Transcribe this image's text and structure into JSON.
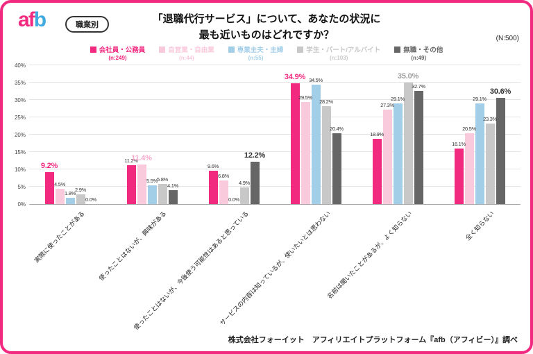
{
  "page": {
    "logo": {
      "a": "a",
      "f": "f",
      "b": "b"
    },
    "badge": "職業別",
    "title_line1": "「退職代行サービス」について、あなたの状況に",
    "title_line2": "最も近いものはどれですか？",
    "n_label": "(N:500)",
    "footer": "株式会社フォーイット　アフィリエイトプラットフォーム『afb（アフィビー）』調べ"
  },
  "chart_data": {
    "type": "bar",
    "title": "「退職代行サービス」について、あなたの状況に最も近いものはどれですか？",
    "ylim": [
      0,
      40
    ],
    "ytick_step": 5,
    "ytick_suffix": "%",
    "grid": true,
    "legend_position": "top",
    "categories": [
      "実際に使ったことがある",
      "使ったことはないが、興味がある",
      "使ったことはないが、今後使う可能性はあると思っている",
      "サービスの内容は知っているが、使いたいとは思わない",
      "名前は聞いたことがあるが、よく知らない",
      "全く知らない"
    ],
    "series": [
      {
        "name": "会社員・公務員",
        "n": "(n:249)",
        "color": "#F12A80",
        "values": [
          9.2,
          11.2,
          9.6,
          34.9,
          18.9,
          16.1
        ]
      },
      {
        "name": "自営業・自由業",
        "n": "(n:44)",
        "color": "#F9C9DC",
        "values": [
          4.5,
          11.4,
          6.8,
          29.5,
          27.3,
          20.5
        ]
      },
      {
        "name": "専業主夫・主婦",
        "n": "(n:55)",
        "color": "#A3CEE8",
        "values": [
          1.8,
          5.5,
          0.0,
          34.5,
          29.1,
          29.1
        ]
      },
      {
        "name": "学生・パート/アルバイト",
        "n": "(n:103)",
        "color": "#C8C8C8",
        "values": [
          2.9,
          5.8,
          4.9,
          28.2,
          35.0,
          23.3
        ]
      },
      {
        "name": "無職・その他",
        "n": "(n:49)",
        "color": "#666666",
        "values": [
          0.0,
          4.1,
          12.2,
          20.4,
          32.7,
          30.6
        ]
      }
    ],
    "highlights": [
      {
        "group": 0,
        "series": 0,
        "color": "#F12A80"
      },
      {
        "group": 1,
        "series": 1,
        "color": "#F7A9CB"
      },
      {
        "group": 2,
        "series": 4,
        "color": "#333333"
      },
      {
        "group": 3,
        "series": 0,
        "color": "#F12A80"
      },
      {
        "group": 4,
        "series": 3,
        "color": "#9E9E9E"
      },
      {
        "group": 5,
        "series": 4,
        "color": "#333333"
      }
    ]
  }
}
